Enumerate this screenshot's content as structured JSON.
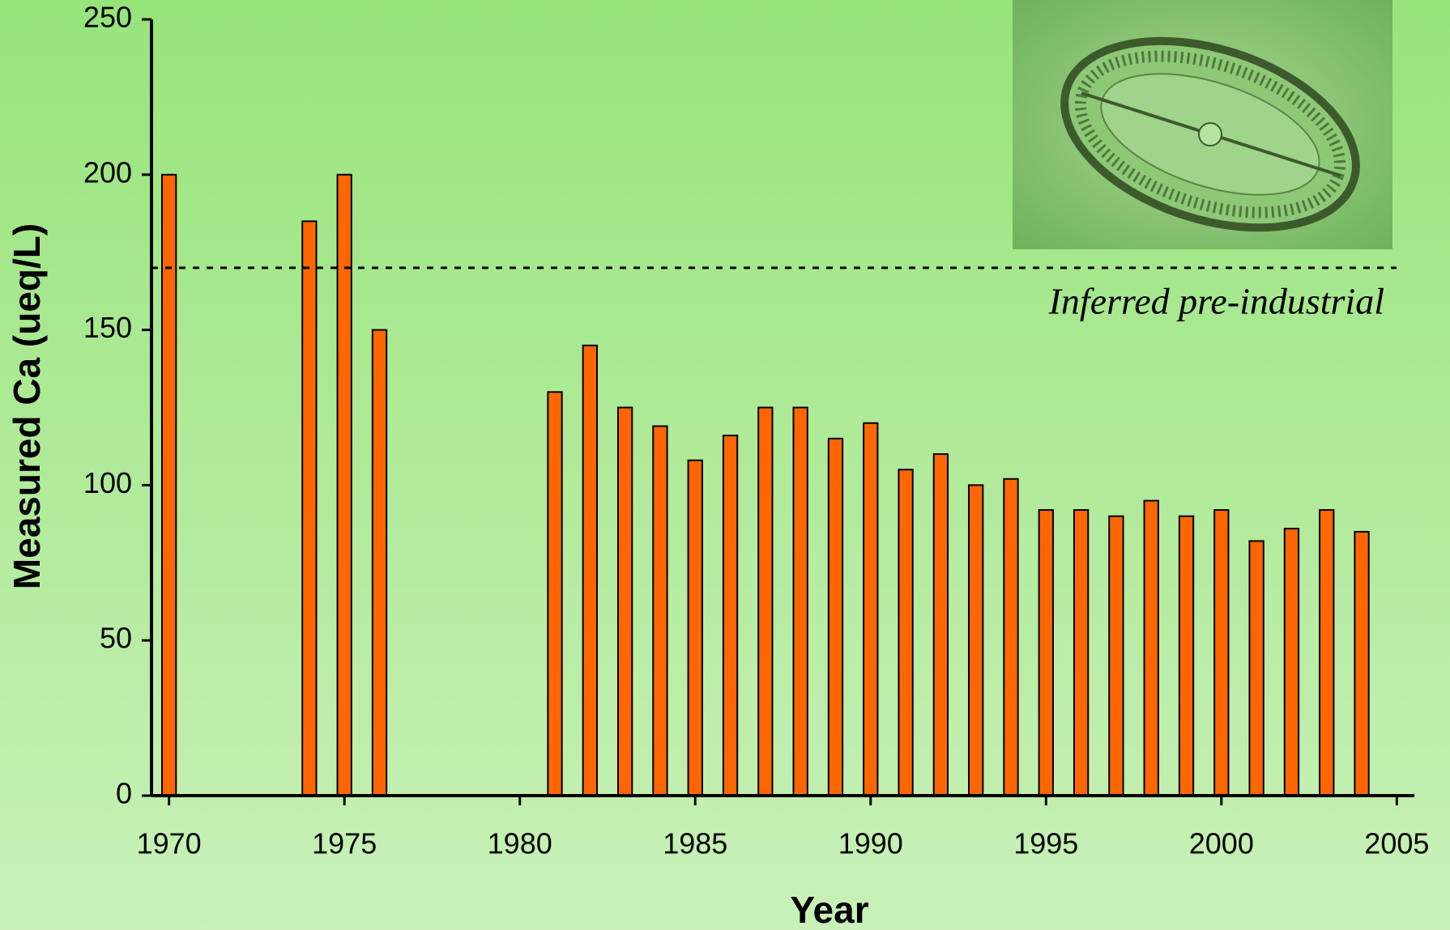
{
  "chart_data": {
    "type": "bar",
    "x_label": "Year",
    "y_label": "Measured Ca (ueq/L)",
    "x": [
      1970,
      1974,
      1975,
      1976,
      1981,
      1982,
      1983,
      1984,
      1985,
      1986,
      1987,
      1988,
      1989,
      1990,
      1991,
      1992,
      1993,
      1994,
      1995,
      1996,
      1997,
      1998,
      1999,
      2000,
      2001,
      2002,
      2003,
      2004
    ],
    "values": [
      200,
      185,
      200,
      150,
      130,
      145,
      125,
      119,
      108,
      116,
      125,
      125,
      115,
      120,
      105,
      110,
      100,
      102,
      92,
      92,
      90,
      95,
      90,
      92,
      82,
      86,
      92,
      85
    ],
    "color": "#ff6600",
    "xlim": [
      1969.5,
      2005.5
    ],
    "xticks": [
      1970,
      1975,
      1980,
      1985,
      1990,
      1995,
      2000,
      2005
    ],
    "ylim": [
      0,
      250
    ],
    "yticks": [
      0,
      50,
      100,
      150,
      200,
      250
    ],
    "reference_line": {
      "value": 170,
      "label": "Inferred pre-industrial"
    }
  }
}
